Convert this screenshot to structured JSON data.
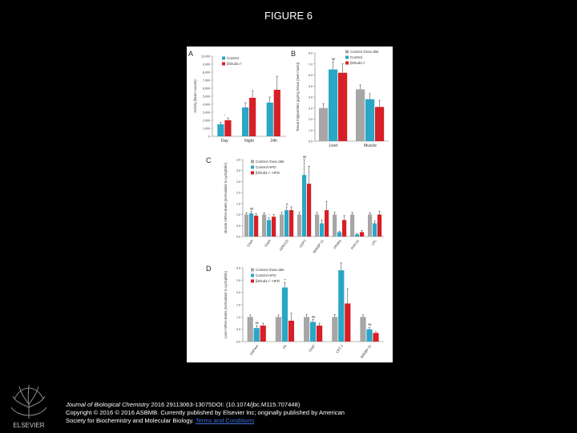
{
  "slide_title": "FIGURE 6",
  "publisher_logo_text": "ELSEVIER",
  "colors": {
    "gray": "#a6a6a6",
    "blue": "#2aa6c6",
    "red": "#d61f26"
  },
  "chart_data": [
    {
      "panel": "A",
      "type": "bar",
      "categories": [
        "Day",
        "Night",
        "24h"
      ],
      "ylabel": "Activity (beam counts)",
      "ylim": [
        0,
        10000
      ],
      "yticks": [
        0,
        1000,
        2000,
        3000,
        4000,
        5000,
        6000,
        7000,
        8000,
        9000,
        10000
      ],
      "series": [
        {
          "name": "Control",
          "color": "#2aa6c6",
          "values": [
            1500,
            3600,
            4200
          ],
          "err": [
            250,
            600,
            700
          ]
        },
        {
          "name": "βGlud1-/-",
          "color": "#d61f26",
          "values": [
            2000,
            4800,
            5800
          ],
          "err": [
            300,
            900,
            1700
          ]
        }
      ],
      "annotations": [
        "*"
      ]
    },
    {
      "panel": "B",
      "type": "bar",
      "categories": [
        "Liver",
        "Muscle"
      ],
      "ylabel": "Tissue triglycerides (µg/mg tissue (/wet mass))",
      "ylim": [
        0,
        8
      ],
      "yticks": [
        0.0,
        1.0,
        2.0,
        3.0,
        4.0,
        5.0,
        6.0,
        7.0,
        8.0
      ],
      "series": [
        {
          "name": "Control chow diet",
          "color": "#a6a6a6",
          "values": [
            3.0,
            4.7
          ],
          "err": [
            0.4,
            0.4
          ]
        },
        {
          "name": "Control",
          "color": "#2aa6c6",
          "values": [
            6.5,
            3.8
          ],
          "err": [
            0.7,
            0.5
          ]
        },
        {
          "name": "βGlud1-/-",
          "color": "#d61f26",
          "values": [
            6.2,
            3.1
          ],
          "err": [
            0.8,
            0.6
          ]
        }
      ],
      "annotations": [
        "$$"
      ]
    },
    {
      "panel": "C",
      "type": "bar",
      "categories": [
        "Glut4",
        "Glut4",
        "GPR120",
        "UCP3",
        "SREBP-1c",
        "PPARγ",
        "PGC1α",
        "LPL"
      ],
      "ylabel": "Muscle mRNA levels (normalized to cyclophilin)",
      "ylim": [
        0,
        3.5
      ],
      "yticks": [
        0.0,
        0.5,
        1.0,
        1.5,
        2.0,
        2.5,
        3.0,
        3.5
      ],
      "series": [
        {
          "name": "Control chow diet",
          "color": "#a6a6a6",
          "values": [
            1.0,
            1.0,
            1.0,
            1.0,
            1.0,
            1.0,
            1.0,
            1.0
          ],
          "err": [
            0.08,
            0.08,
            0.1,
            0.1,
            0.1,
            0.1,
            0.1,
            0.08
          ]
        },
        {
          "name": "Control HFD",
          "color": "#2aa6c6",
          "values": [
            1.05,
            0.75,
            1.2,
            2.8,
            0.6,
            0.2,
            0.1,
            0.6
          ],
          "err": [
            0.1,
            0.1,
            0.15,
            0.7,
            0.15,
            0.05,
            0.03,
            0.1
          ]
        },
        {
          "name": "βGlud1-/- HFD",
          "color": "#d61f26",
          "values": [
            0.95,
            0.9,
            1.2,
            2.4,
            1.2,
            0.75,
            0.2,
            1.0
          ],
          "err": [
            0.1,
            0.1,
            0.15,
            0.8,
            0.4,
            0.2,
            0.08,
            0.15
          ]
        }
      ],
      "annotations": [
        "$$",
        "*",
        "$",
        "$$"
      ]
    },
    {
      "panel": "D",
      "type": "bar",
      "categories": [
        "G6Pase",
        "Gk",
        "Glut2",
        "CPT-1",
        "SREBP-1c"
      ],
      "ylabel": "Liver mRNA levels (normalized to cyclophilin)",
      "ylim": [
        0,
        3.0
      ],
      "yticks": [
        0.0,
        0.5,
        1.0,
        1.5,
        2.0,
        2.5,
        3.0
      ],
      "series": [
        {
          "name": "Control chow diet",
          "color": "#a6a6a6",
          "values": [
            1.0,
            1.0,
            1.0,
            1.0,
            1.0
          ],
          "err": [
            0.08,
            0.08,
            0.1,
            0.1,
            0.08
          ]
        },
        {
          "name": "Control HFD",
          "color": "#2aa6c6",
          "values": [
            0.55,
            2.2,
            0.8,
            2.9,
            0.5
          ],
          "err": [
            0.1,
            0.2,
            0.1,
            0.3,
            0.08
          ]
        },
        {
          "name": "βGlud1-/- HFD",
          "color": "#d61f26",
          "values": [
            0.65,
            0.85,
            0.65,
            1.55,
            0.35
          ],
          "err": [
            0.1,
            0.3,
            0.1,
            0.6,
            0.05
          ]
        }
      ],
      "annotations": [
        "$$",
        "**",
        "$$",
        "*",
        "$$"
      ]
    }
  ],
  "footer": {
    "journal": "Journal of Biological Chemistry",
    "citation": " 2016 29113063-13075DOI: (10.1074/jbc.M115.707448)",
    "copyright": "Copyright © 2016 © 2016 ASBMB. Currently published by Elsevier Inc; originally published by American",
    "copyright2": "Society for Biochemistry and Molecular Biology.",
    "link": "Terms and Conditions"
  }
}
